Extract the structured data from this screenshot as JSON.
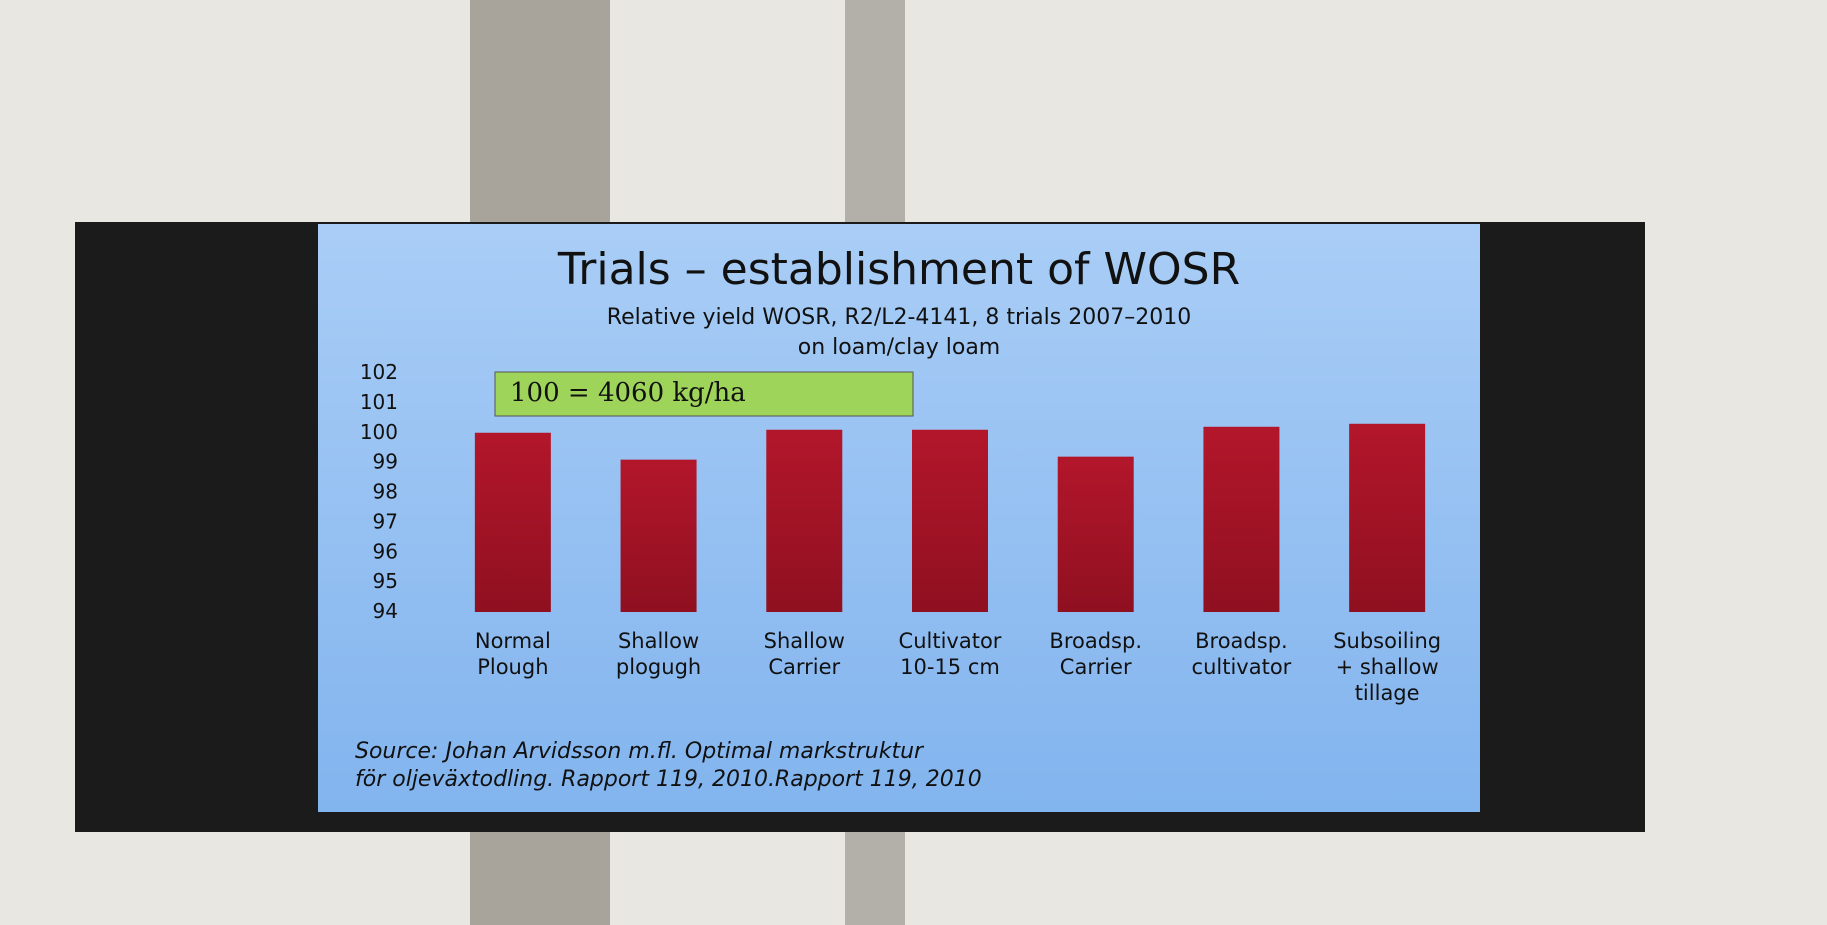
{
  "chart_data": {
    "type": "bar",
    "title": "Trials – establishment of WOSR",
    "subtitle": "Relative yield WOSR, R2/L2-4141, 8 trials 2007–2010\non loam/clay loam",
    "annotation": "100 = 4060 kg/ha",
    "source": "Source: Johan Arvidsson m.fl. Optimal markstruktur\nför oljeväxtodling. Rapport 119, 2010.Rapport 119, 2010",
    "categories": [
      "Normal\nPlough",
      "Shallow\nplogugh",
      "Shallow\nCarrier",
      "Cultivator\n10-15 cm",
      "Broadsp.\nCarrier",
      "Broadsp.\ncultivator",
      "Subsoiling\n+ shallow\ntillage"
    ],
    "values": [
      100,
      99.1,
      100.1,
      100.1,
      99.2,
      100.2,
      100.3
    ],
    "color": "#b3162b",
    "ylim": [
      94,
      102
    ],
    "yticks": [
      94,
      95,
      96,
      97,
      98,
      99,
      100,
      101,
      102
    ],
    "grid": false
  }
}
